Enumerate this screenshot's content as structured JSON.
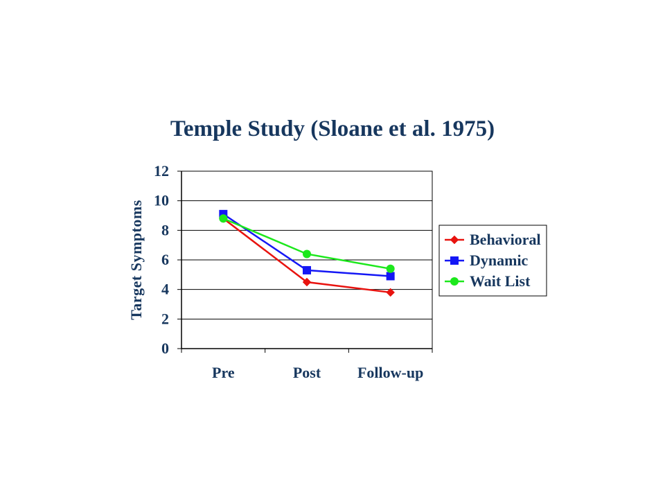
{
  "chart_data": {
    "type": "line",
    "title": "Temple Study (Sloane et al. 1975)",
    "xlabel": "",
    "ylabel": "Target Symptoms",
    "categories": [
      "Pre",
      "Post",
      "Follow-up"
    ],
    "ylim": [
      0,
      12
    ],
    "yticks": [
      0,
      2,
      4,
      6,
      8,
      10,
      12
    ],
    "grid": true,
    "legend": "right",
    "series": [
      {
        "name": "Behavioral",
        "values": [
          8.8,
          4.5,
          3.8
        ],
        "color": "#E8130F",
        "marker": "diamond"
      },
      {
        "name": "Dynamic",
        "values": [
          9.1,
          5.3,
          4.9
        ],
        "color": "#1417F5",
        "marker": "square"
      },
      {
        "name": "Wait List",
        "values": [
          8.8,
          6.4,
          5.4
        ],
        "color": "#1CE81C",
        "marker": "circle"
      }
    ]
  }
}
